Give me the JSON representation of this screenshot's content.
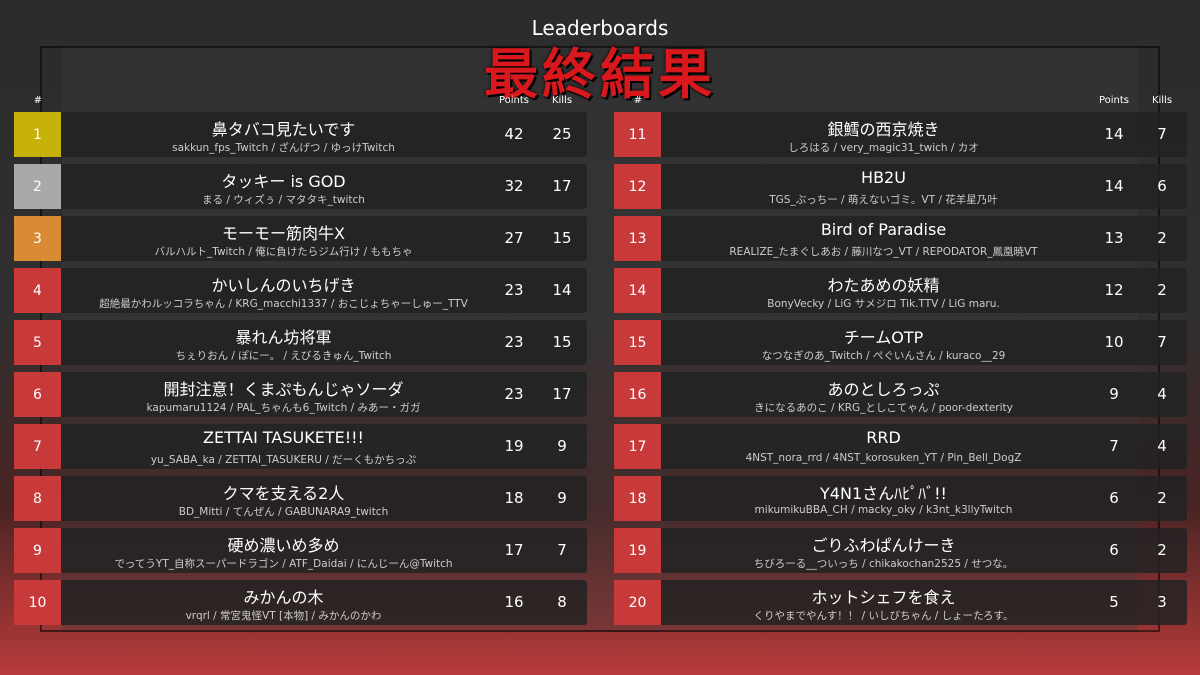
{
  "header": {
    "title": "Leaderboards",
    "subtitle": "最終結果"
  },
  "columns": {
    "rank": "#",
    "points": "Points",
    "kills": "Kills"
  },
  "rows": [
    {
      "rank": 1,
      "team": "鼻タバコ見たいです",
      "members": "sakkun_fps_Twitch / ざんげつ / ゆっけTwitch",
      "points": 42,
      "kills": 25
    },
    {
      "rank": 2,
      "team": "タッキー is GOD",
      "members": "まる / ウィズぅ / マタタキ_twitch",
      "points": 32,
      "kills": 17
    },
    {
      "rank": 3,
      "team": "モーモー筋肉牛X",
      "members": "バルハルト_Twitch / 俺に負けたらジム行け / ももちゃ",
      "points": 27,
      "kills": 15
    },
    {
      "rank": 4,
      "team": "かいしんのいちげき",
      "members": "超絶最かわルッコラちゃん / KRG_macchi1337 / おこじょちゃーしゅー_TTV",
      "points": 23,
      "kills": 14
    },
    {
      "rank": 5,
      "team": "暴れん坊将軍",
      "members": "ちぇりおん / ぽにー。 / えびるきゅん_Twitch",
      "points": 23,
      "kills": 15
    },
    {
      "rank": 6,
      "team": "開封注意！くまぷもんじゃソーダ",
      "members": "kapumaru1124 / PAL_ちゃんも6_Twitch / みあー・ガガ",
      "points": 23,
      "kills": 17
    },
    {
      "rank": 7,
      "team": "ZETTAI TASUKETE!!!",
      "members": "yu_SABA_ka / ZETTAI_TASUKERU / だーくもかちっぷ",
      "points": 19,
      "kills": 9
    },
    {
      "rank": 8,
      "team": "クマを支える2人",
      "members": "BD_Mitti / てんぜん / GABUNARA9_twitch",
      "points": 18,
      "kills": 9
    },
    {
      "rank": 9,
      "team": "硬め濃いめ多め",
      "members": "でってうYT_自称スーパードラゴン / ATF_Daidai / にんじーん@Twitch",
      "points": 17,
      "kills": 7
    },
    {
      "rank": 10,
      "team": "みかんの木",
      "members": "vrqrl / 常宮鬼怪VT [本物] / みかんのかわ",
      "points": 16,
      "kills": 8
    },
    {
      "rank": 11,
      "team": "銀鱈の西京焼き",
      "members": "しろはる / very_magic31_twich / カオ",
      "points": 14,
      "kills": 7
    },
    {
      "rank": 12,
      "team": "HB2U",
      "members": "TGS_ぶっちー / 萌えないゴミ。VT / 花羊星乃叶",
      "points": 14,
      "kills": 6
    },
    {
      "rank": 13,
      "team": "Bird of Paradise",
      "members": "REALIZE_たまぐしあお / 藤川なつ_VT / REPODATOR_鳳凰暁VT",
      "points": 13,
      "kills": 2
    },
    {
      "rank": 14,
      "team": "わたあめの妖精",
      "members": "BonyVecky / LiG サメジロ Tik.TTV / LiG maru.",
      "points": 12,
      "kills": 2
    },
    {
      "rank": 15,
      "team": "チームOTP",
      "members": "なつなぎのあ_Twitch / ぺぐいんさん / kuraco__29",
      "points": 10,
      "kills": 7
    },
    {
      "rank": 16,
      "team": "あのとしろっぷ",
      "members": "きになるあのこ / KRG_としこてゃん / poor-dexterity",
      "points": 9,
      "kills": 4
    },
    {
      "rank": 17,
      "team": "RRD",
      "members": "4NST_nora_rrd / 4NST_korosuken_YT / Pin_Bell_DogZ",
      "points": 7,
      "kills": 4
    },
    {
      "rank": 18,
      "team": "Y4N1さんﾊﾋﾟﾊﾞ!!",
      "members": "mikumikuBBA_CH / macky_oky / k3nt_k3llyTwitch",
      "points": 6,
      "kills": 2
    },
    {
      "rank": 19,
      "team": "ごりふわぱんけーき",
      "members": "ちびろーる__ついっち / chikakochan2525 / せつな。",
      "points": 6,
      "kills": 2
    },
    {
      "rank": 20,
      "team": "ホットシェフを食え",
      "members": "くりやまでやんす！！ / いしびちゃん / しょーたろす。",
      "points": 5,
      "kills": 3
    }
  ]
}
